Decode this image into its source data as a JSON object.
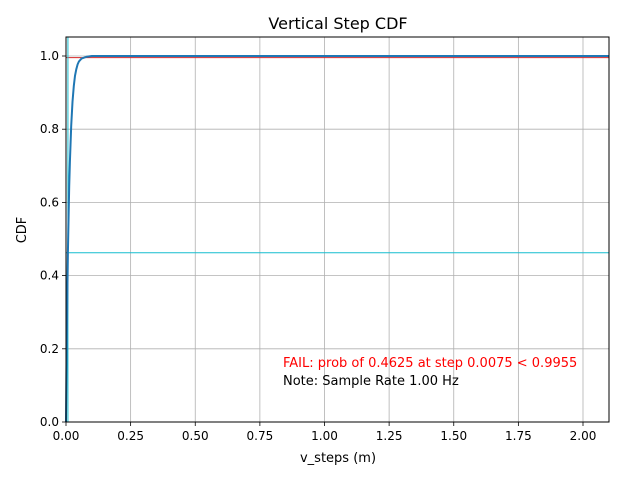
{
  "chart_data": {
    "type": "line",
    "title": "Vertical Step CDF",
    "xlabel": "v_steps (m)",
    "ylabel": "CDF",
    "xlim": [
      0,
      2.1
    ],
    "ylim": [
      0,
      1.05
    ],
    "grid": true,
    "xticks": [
      "0.00",
      "0.25",
      "0.50",
      "0.75",
      "1.00",
      "1.25",
      "1.50",
      "1.75",
      "2.00"
    ],
    "xtick_values": [
      0,
      0.25,
      0.5,
      0.75,
      1.0,
      1.25,
      1.5,
      1.75,
      2.0
    ],
    "yticks": [
      "0.0",
      "0.2",
      "0.4",
      "0.6",
      "0.8",
      "1.0"
    ],
    "ytick_values": [
      0,
      0.2,
      0.4,
      0.6,
      0.8,
      1.0
    ],
    "series": [
      {
        "color": "#1f77b4",
        "x": [
          0,
          0.0025,
          0.005,
          0.0075,
          0.01,
          0.0125,
          0.015,
          0.02,
          0.025,
          0.03,
          0.035,
          0.04,
          0.045,
          0.05,
          0.06,
          0.08,
          0.1,
          0.5,
          1.0,
          1.5,
          2.0,
          2.1
        ],
        "y": [
          0,
          0.187,
          0.339,
          0.4625,
          0.562,
          0.644,
          0.711,
          0.809,
          0.875,
          0.918,
          0.946,
          0.964,
          0.977,
          0.985,
          0.993,
          0.998,
          1.0,
          1.0,
          1.0,
          1.0,
          1.0,
          1.0
        ]
      }
    ],
    "reference_lines": [
      {
        "orientation": "horizontal",
        "value": 0.9955,
        "color": "#d62728"
      },
      {
        "orientation": "horizontal",
        "value": 0.4625,
        "color": "#17becf"
      },
      {
        "orientation": "vertical",
        "value": 0.0075,
        "color": "#17becf"
      }
    ],
    "annotations": [
      {
        "text": "FAIL: prob of 0.4625 at step 0.0075 < 0.9955",
        "color": "#ff0000"
      },
      {
        "text": "Note: Sample Rate 1.00 Hz",
        "color": "#000000"
      }
    ]
  }
}
